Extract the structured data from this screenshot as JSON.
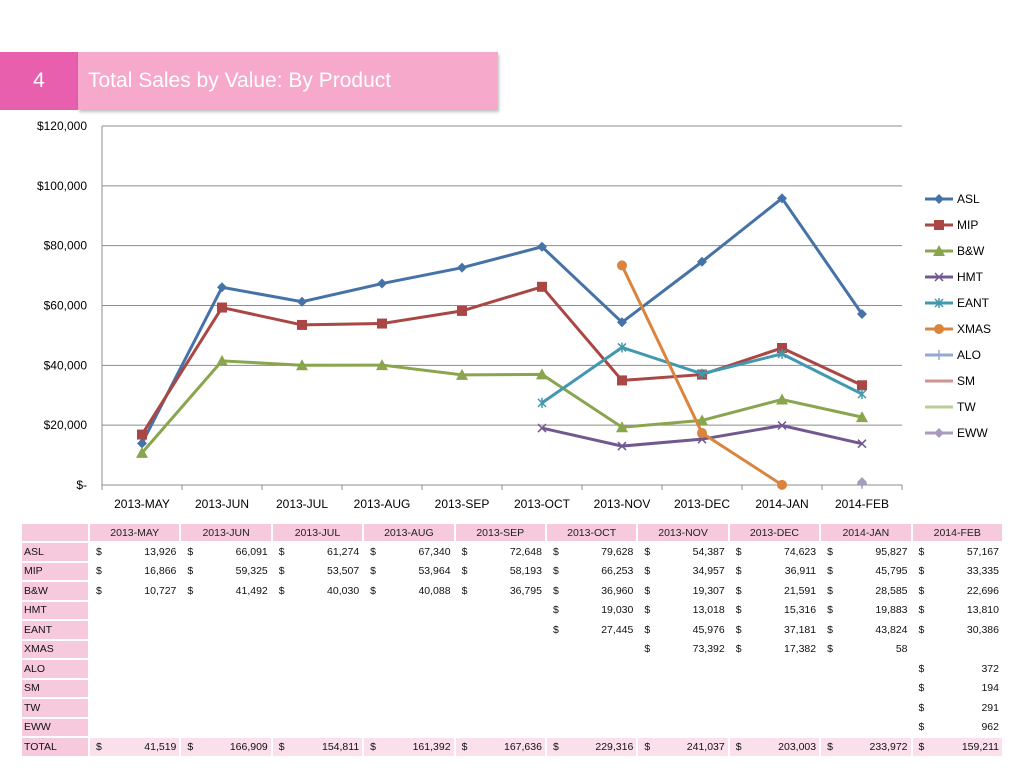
{
  "header": {
    "slide_number": "4",
    "title": "Total Sales by Value: By Product"
  },
  "chart_data": {
    "type": "line",
    "categories": [
      "2013-MAY",
      "2013-JUN",
      "2013-JUL",
      "2013-AUG",
      "2013-SEP",
      "2013-OCT",
      "2013-NOV",
      "2013-DEC",
      "2014-JAN",
      "2014-FEB"
    ],
    "ylim": [
      0,
      120000
    ],
    "yticks": [
      0,
      20000,
      40000,
      60000,
      80000,
      100000,
      120000
    ],
    "ytick_labels": [
      "$-",
      "$20,000",
      "$40,000",
      "$60,000",
      "$80,000",
      "$100,000",
      "$120,000"
    ],
    "grid": true,
    "legend_position": "right",
    "series": [
      {
        "name": "ASL",
        "color": "#4572a7",
        "marker": "diamond",
        "values": [
          13926,
          66091,
          61274,
          67340,
          72648,
          79628,
          54387,
          74623,
          95827,
          57167
        ]
      },
      {
        "name": "MIP",
        "color": "#aa4643",
        "marker": "square",
        "values": [
          16866,
          59325,
          53507,
          53964,
          58193,
          66253,
          34957,
          36911,
          45795,
          33335
        ]
      },
      {
        "name": "B&W",
        "color": "#89a54e",
        "marker": "triangle",
        "values": [
          10727,
          41492,
          40030,
          40088,
          36795,
          36960,
          19307,
          21591,
          28585,
          22696
        ]
      },
      {
        "name": "HMT",
        "color": "#71588f",
        "marker": "x",
        "values": [
          null,
          null,
          null,
          null,
          null,
          19030,
          13018,
          15316,
          19883,
          13810
        ]
      },
      {
        "name": "EANT",
        "color": "#4198af",
        "marker": "asterisk",
        "values": [
          null,
          null,
          null,
          null,
          null,
          27445,
          45976,
          37181,
          43824,
          30386
        ]
      },
      {
        "name": "XMAS",
        "color": "#db843d",
        "marker": "circle",
        "values": [
          null,
          null,
          null,
          null,
          null,
          null,
          73392,
          17382,
          58,
          null
        ]
      },
      {
        "name": "ALO",
        "color": "#93a9cf",
        "marker": "plus",
        "values": [
          null,
          null,
          null,
          null,
          null,
          null,
          null,
          null,
          null,
          372
        ]
      },
      {
        "name": "SM",
        "color": "#d19392",
        "marker": "dash",
        "values": [
          null,
          null,
          null,
          null,
          null,
          null,
          null,
          null,
          null,
          194
        ]
      },
      {
        "name": "TW",
        "color": "#b9cd96",
        "marker": "dash",
        "values": [
          null,
          null,
          null,
          null,
          null,
          null,
          null,
          null,
          null,
          291
        ]
      },
      {
        "name": "EWW",
        "color": "#a99bbd",
        "marker": "diamond",
        "values": [
          null,
          null,
          null,
          null,
          null,
          null,
          null,
          null,
          null,
          962
        ]
      }
    ]
  },
  "table": {
    "currency_symbol": "$",
    "columns": [
      "2013-MAY",
      "2013-JUN",
      "2013-JUL",
      "2013-AUG",
      "2013-SEP",
      "2013-OCT",
      "2013-NOV",
      "2013-DEC",
      "2014-JAN",
      "2014-FEB"
    ],
    "rows": [
      {
        "label": "ASL",
        "cells": [
          "13,926",
          "66,091",
          "61,274",
          "67,340",
          "72,648",
          "79,628",
          "54,387",
          "74,623",
          "95,827",
          "57,167"
        ]
      },
      {
        "label": "MIP",
        "cells": [
          "16,866",
          "59,325",
          "53,507",
          "53,964",
          "58,193",
          "66,253",
          "34,957",
          "36,911",
          "45,795",
          "33,335"
        ]
      },
      {
        "label": "B&W",
        "cells": [
          "10,727",
          "41,492",
          "40,030",
          "40,088",
          "36,795",
          "36,960",
          "19,307",
          "21,591",
          "28,585",
          "22,696"
        ]
      },
      {
        "label": "HMT",
        "cells": [
          "",
          "",
          "",
          "",
          "",
          "19,030",
          "13,018",
          "15,316",
          "19,883",
          "13,810"
        ]
      },
      {
        "label": "EANT",
        "cells": [
          "",
          "",
          "",
          "",
          "",
          "27,445",
          "45,976",
          "37,181",
          "43,824",
          "30,386"
        ]
      },
      {
        "label": "XMAS",
        "cells": [
          "",
          "",
          "",
          "",
          "",
          "",
          "73,392",
          "17,382",
          "58",
          ""
        ]
      },
      {
        "label": "ALO",
        "cells": [
          "",
          "",
          "",
          "",
          "",
          "",
          "",
          "",
          "",
          "372"
        ]
      },
      {
        "label": "SM",
        "cells": [
          "",
          "",
          "",
          "",
          "",
          "",
          "",
          "",
          "",
          "194"
        ]
      },
      {
        "label": "TW",
        "cells": [
          "",
          "",
          "",
          "",
          "",
          "",
          "",
          "",
          "",
          "291"
        ]
      },
      {
        "label": "EWW",
        "cells": [
          "",
          "",
          "",
          "",
          "",
          "",
          "",
          "",
          "",
          "962"
        ]
      }
    ],
    "total": {
      "label": "TOTAL",
      "cells": [
        "41,519",
        "166,909",
        "154,811",
        "161,392",
        "167,636",
        "229,316",
        "241,037",
        "203,003",
        "233,972",
        "159,211"
      ]
    }
  }
}
